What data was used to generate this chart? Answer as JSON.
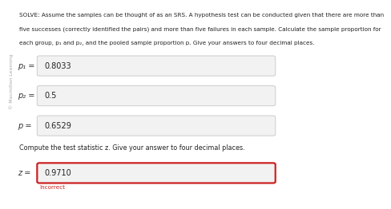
{
  "title_line1": "SOLVE: Assume the samples can be thought of as an SRS. A hypothesis test can be conducted given that there are more than",
  "title_line2": "five successes (correctly identified the pairs) and more than five failures in each sample. Calculate the sample proportion for",
  "title_line3": "each group, p₁ and p₂, and the pooled sample proportion p. Give your answers to four decimal places.",
  "watermark": "Macmillan Learning",
  "label1": "p₁ =",
  "label2": "p₂ =",
  "label3": "p =",
  "label4": "z =",
  "value1": "0.8033",
  "value2": "0.5",
  "value3": "0.6529",
  "value4": "0.9710",
  "compute_text": "Compute the test statistic z. Give your answer to four decimal places.",
  "incorrect_text": "Incorrect",
  "bg_color": "#ffffff",
  "box_bg": "#f2f2f2",
  "box_border_normal": "#cccccc",
  "box_border_red": "#cc2222",
  "text_color": "#222222",
  "label_color": "#333333",
  "incorrect_color": "#cc2222",
  "watermark_color": "#aaaaaa",
  "title_fontsize": 5.2,
  "label_fontsize": 7.0,
  "value_fontsize": 7.0,
  "compute_fontsize": 5.8,
  "incorrect_fontsize": 5.2,
  "watermark_fontsize": 4.5
}
